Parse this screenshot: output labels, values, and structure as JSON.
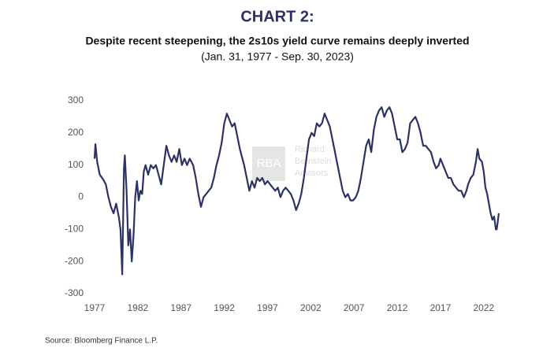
{
  "chart_data": {
    "type": "line",
    "title": "CHART 2:",
    "subtitle": "Despite recent steepening, the 2s10s yield curve remains deeply inverted",
    "date_range": "(Jan. 31, 1977 - Sep. 30, 2023)",
    "source": "Source: Bloomberg Finance L.P.",
    "watermark": [
      "RBA",
      "Richard",
      "Bernstein",
      "Advisors"
    ],
    "xlim": [
      1977,
      2023.75
    ],
    "xticks": [
      1977,
      1982,
      1987,
      1992,
      1997,
      2002,
      2007,
      2012,
      2017,
      2022
    ],
    "ylim": [
      -300,
      300
    ],
    "yticks": [
      -300,
      -200,
      -100,
      0,
      100,
      200,
      300
    ],
    "grid": false,
    "series": [
      {
        "color": "#2b3366",
        "x": [
          1977.0,
          1977.1,
          1977.3,
          1977.6,
          1978.0,
          1978.3,
          1978.6,
          1978.9,
          1979.2,
          1979.5,
          1979.8,
          1980.0,
          1980.2,
          1980.4,
          1980.5,
          1980.7,
          1980.9,
          1981.1,
          1981.3,
          1981.5,
          1981.7,
          1981.9,
          1982.1,
          1982.3,
          1982.5,
          1982.7,
          1982.9,
          1983.2,
          1983.5,
          1983.8,
          1984.1,
          1984.4,
          1984.7,
          1985.0,
          1985.3,
          1985.6,
          1985.9,
          1986.2,
          1986.5,
          1986.8,
          1987.1,
          1987.4,
          1987.7,
          1988.0,
          1988.4,
          1988.7,
          1989.0,
          1989.3,
          1989.6,
          1989.9,
          1990.2,
          1990.5,
          1990.8,
          1991.1,
          1991.4,
          1991.7,
          1992.0,
          1992.3,
          1992.6,
          1992.9,
          1993.2,
          1993.5,
          1993.8,
          1994.0,
          1994.3,
          1994.6,
          1994.9,
          1995.2,
          1995.5,
          1995.8,
          1996.1,
          1996.4,
          1996.7,
          1997.0,
          1997.3,
          1997.6,
          1997.9,
          1998.2,
          1998.5,
          1998.8,
          1999.1,
          1999.4,
          1999.7,
          2000.0,
          2000.3,
          2000.6,
          2000.9,
          2001.2,
          2001.5,
          2001.8,
          2002.1,
          2002.4,
          2002.7,
          2003.0,
          2003.3,
          2003.6,
          2003.9,
          2004.2,
          2004.5,
          2004.8,
          2005.1,
          2005.4,
          2005.7,
          2006.0,
          2006.3,
          2006.6,
          2006.9,
          2007.2,
          2007.5,
          2007.8,
          2008.1,
          2008.4,
          2008.7,
          2009.0,
          2009.3,
          2009.6,
          2009.9,
          2010.2,
          2010.5,
          2010.8,
          2011.1,
          2011.4,
          2011.7,
          2012.0,
          2012.3,
          2012.6,
          2012.9,
          2013.2,
          2013.5,
          2013.8,
          2014.1,
          2014.4,
          2014.7,
          2015.0,
          2015.3,
          2015.6,
          2015.9,
          2016.2,
          2016.5,
          2016.8,
          2017.0,
          2017.3,
          2017.6,
          2017.9,
          2018.2,
          2018.5,
          2018.8,
          2019.1,
          2019.4,
          2019.7,
          2020.0,
          2020.2,
          2020.5,
          2020.8,
          2021.1,
          2021.3,
          2021.5,
          2021.8,
          2022.0,
          2022.2,
          2022.4,
          2022.6,
          2022.8,
          2023.0,
          2023.2,
          2023.4,
          2023.5,
          2023.6,
          2023.75
        ],
        "values": [
          120,
          165,
          110,
          70,
          55,
          40,
          0,
          -30,
          -50,
          -20,
          -60,
          -100,
          -240,
          90,
          130,
          20,
          -150,
          -100,
          -200,
          -120,
          0,
          50,
          -10,
          20,
          10,
          80,
          100,
          70,
          100,
          90,
          100,
          70,
          40,
          100,
          160,
          130,
          110,
          130,
          110,
          150,
          100,
          120,
          100,
          120,
          100,
          60,
          10,
          -30,
          0,
          10,
          20,
          30,
          60,
          100,
          130,
          170,
          230,
          260,
          240,
          220,
          230,
          190,
          150,
          130,
          100,
          60,
          20,
          50,
          30,
          60,
          50,
          60,
          40,
          50,
          40,
          30,
          20,
          30,
          0,
          20,
          30,
          20,
          10,
          -10,
          -40,
          -20,
          10,
          60,
          120,
          180,
          200,
          190,
          230,
          220,
          230,
          260,
          240,
          220,
          180,
          140,
          100,
          60,
          20,
          0,
          10,
          -10,
          -10,
          0,
          20,
          60,
          110,
          160,
          180,
          140,
          210,
          250,
          270,
          280,
          250,
          270,
          280,
          260,
          220,
          180,
          180,
          140,
          150,
          170,
          230,
          240,
          250,
          230,
          200,
          160,
          160,
          150,
          140,
          110,
          90,
          100,
          120,
          100,
          80,
          60,
          60,
          40,
          30,
          20,
          20,
          0,
          20,
          40,
          60,
          70,
          110,
          150,
          120,
          110,
          80,
          30,
          10,
          -20,
          -50,
          -70,
          -60,
          -100,
          -100,
          -80,
          -50
        ]
      }
    ]
  }
}
